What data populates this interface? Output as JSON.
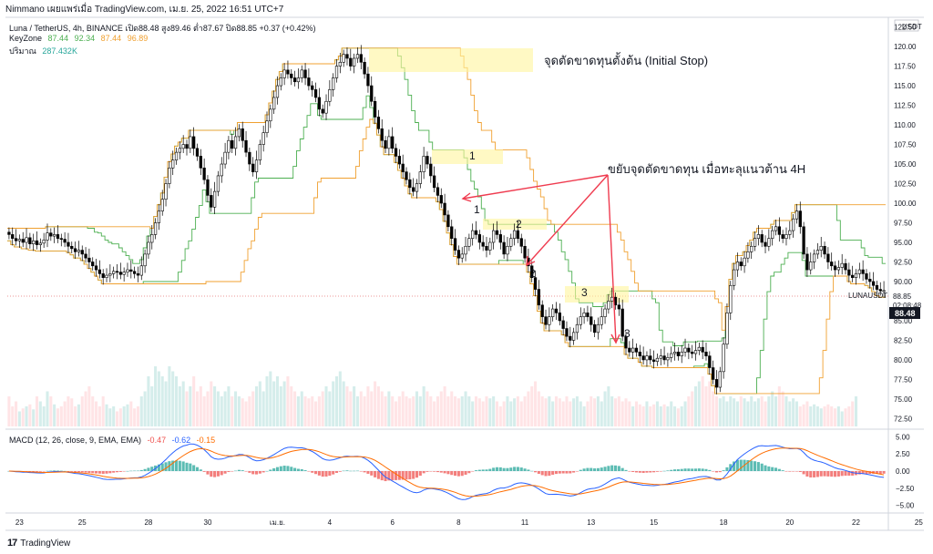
{
  "header": {
    "publisher": "Nimmano เผยแพร่เมื่อ TradingView.com, เม.ย. 25, 2022 16:51 UTC+7"
  },
  "legend": {
    "symbol_line": "Luna / TetherUS, 4h, BINANCE  เปิด88.48  สูง89.46  ต่ำ87.67  ปิด88.85  +0.37 (+0.42%)",
    "keyzone_label": "KeyZone",
    "keyzone_values": [
      "87.44",
      "92.34",
      "87.44",
      "96.89"
    ],
    "volume_label": "ปริมาณ",
    "volume_value": "287.432K",
    "macd_label": "MACD (12, 26, close, 9, EMA, EMA)",
    "macd_values": [
      "-0.47",
      "-0.62",
      "-0.15"
    ]
  },
  "annotations": {
    "initial_stop": "จุดตัดขาดทุนตั้งต้น (Initial Stop)",
    "move_stop": "ขยับจุดตัดขาดทุน เมื่อทะลุแนวต้าน 4H",
    "zone_labels": [
      "1",
      "2",
      "3"
    ],
    "arrow_labels": [
      "1",
      "2",
      "3"
    ]
  },
  "price_axis": {
    "currency": "USDT",
    "symbol_tag": "LUNAUSDT",
    "price_tag": "88.85",
    "countdown": "02:08:48",
    "close_tag": "88.48"
  },
  "footer": {
    "brand": "TradingView",
    "logo": "17"
  },
  "colors": {
    "up": "#ffffff",
    "down": "#000000",
    "green_line": "#4caf50",
    "orange_line": "#f0a030",
    "zone": "#fff59d",
    "arrow": "#ef3b4f",
    "macd": "#2962ff",
    "signal": "#ff6d00",
    "hist_pos": "#26a69a",
    "hist_neg": "#ef5350"
  },
  "chart_data": {
    "type": "candlestick",
    "title": "Luna / TetherUS, 4h, BINANCE",
    "price_ticks": [
      "122.50",
      "120.00",
      "117.50",
      "115.00",
      "112.50",
      "110.00",
      "107.50",
      "105.00",
      "102.50",
      "100.00",
      "97.50",
      "95.00",
      "92.50",
      "90.00",
      "85.00",
      "82.50",
      "80.00",
      "77.50",
      "75.00",
      "72.50"
    ],
    "ylim": [
      71.5,
      123.5
    ],
    "macd_ticks": [
      "5.00",
      "2.50",
      "0.00",
      "-2.50",
      "-5.00"
    ],
    "macd_ylim": [
      -5.7,
      5.7
    ],
    "x_ticks": [
      "23",
      "25",
      "28",
      "30",
      "เม.ย.",
      "4",
      "6",
      "8",
      "11",
      "13",
      "15",
      "18",
      "20",
      "22",
      "25"
    ],
    "x_tick_bars": [
      3,
      21,
      40,
      57,
      77,
      92,
      110,
      129,
      148,
      167,
      185,
      205,
      224,
      243,
      261
    ],
    "closes": [
      96.0,
      95.5,
      95.2,
      95.4,
      95.0,
      95.6,
      94.8,
      95.2,
      94.7,
      94.9,
      95.3,
      96.2,
      95.8,
      96.0,
      95.5,
      95.4,
      95.0,
      94.5,
      94.2,
      93.8,
      94.0,
      93.5,
      93.0,
      92.5,
      92.0,
      91.5,
      91.0,
      90.5,
      90.8,
      91.0,
      91.3,
      91.2,
      90.9,
      91.2,
      91.5,
      91.3,
      91.0,
      90.8,
      92.0,
      93.5,
      95.0,
      96.0,
      97.5,
      99.0,
      100.5,
      102.5,
      104.5,
      105.5,
      106.5,
      107.0,
      107.5,
      107.0,
      108.5,
      107.0,
      106.0,
      104.5,
      103.0,
      101.0,
      99.5,
      101.5,
      103.5,
      105.0,
      106.5,
      108.0,
      107.0,
      108.5,
      109.5,
      108.0,
      106.5,
      105.0,
      104.0,
      105.5,
      107.5,
      109.0,
      110.5,
      112.0,
      113.5,
      115.0,
      116.0,
      117.0,
      116.5,
      116.0,
      115.5,
      116.0,
      117.0,
      116.0,
      115.0,
      114.5,
      113.5,
      112.0,
      111.5,
      113.0,
      114.5,
      116.0,
      117.5,
      118.0,
      119.0,
      118.5,
      117.5,
      118.5,
      119.0,
      118.0,
      116.5,
      115.0,
      113.0,
      111.0,
      109.5,
      108.0,
      107.0,
      108.5,
      107.0,
      106.0,
      105.0,
      104.0,
      103.0,
      102.0,
      101.5,
      102.5,
      104.0,
      106.0,
      105.0,
      103.5,
      102.0,
      101.0,
      100.0,
      98.5,
      97.0,
      95.5,
      94.0,
      93.0,
      93.5,
      94.5,
      95.5,
      96.5,
      96.0,
      95.0,
      94.5,
      94.0,
      95.0,
      96.5,
      96.0,
      95.0,
      93.5,
      94.5,
      95.5,
      96.5,
      95.5,
      94.5,
      93.0,
      92.0,
      90.5,
      89.0,
      87.0,
      85.5,
      84.5,
      85.5,
      86.5,
      86.0,
      85.0,
      84.0,
      83.0,
      82.5,
      83.5,
      84.5,
      85.5,
      86.0,
      85.5,
      84.5,
      83.5,
      84.5,
      85.5,
      86.5,
      87.5,
      88.0,
      87.0,
      86.5,
      83.0,
      81.5,
      81.0,
      81.5,
      81.0,
      80.5,
      80.0,
      80.5,
      80.0,
      79.8,
      80.2,
      80.5,
      80.0,
      80.3,
      80.8,
      81.0,
      80.5,
      81.0,
      81.5,
      81.0,
      80.8,
      81.2,
      81.6,
      81.0,
      80.5,
      79.0,
      77.5,
      76.5,
      78.5,
      82.0,
      86.0,
      89.5,
      91.5,
      92.5,
      92.0,
      93.0,
      93.8,
      94.5,
      95.5,
      96.0,
      95.0,
      94.5,
      95.5,
      96.5,
      97.0,
      96.0,
      95.5,
      96.0,
      96.5,
      98.0,
      99.0,
      97.0,
      93.5,
      91.5,
      92.5,
      93.5,
      94.0,
      94.5,
      93.5,
      92.5,
      92.0,
      91.5,
      91.8,
      92.3,
      91.5,
      90.8,
      90.5,
      91.0,
      91.5,
      91.0,
      90.3,
      90.0,
      89.5,
      89.0,
      88.8,
      88.85
    ],
    "volumes": [
      0.3,
      0.2,
      0.25,
      0.15,
      0.18,
      0.2,
      0.22,
      0.17,
      0.3,
      0.25,
      0.2,
      0.35,
      0.3,
      0.22,
      0.18,
      0.2,
      0.25,
      0.3,
      0.28,
      0.2,
      0.22,
      0.3,
      0.35,
      0.4,
      0.3,
      0.25,
      0.2,
      0.3,
      0.22,
      0.18,
      0.2,
      0.15,
      0.18,
      0.2,
      0.22,
      0.25,
      0.18,
      0.2,
      0.3,
      0.35,
      0.5,
      0.4,
      0.6,
      0.55,
      0.5,
      0.45,
      0.6,
      0.55,
      0.5,
      0.4,
      0.45,
      0.35,
      0.4,
      0.5,
      0.35,
      0.4,
      0.3,
      0.35,
      0.45,
      0.4,
      0.35,
      0.3,
      0.35,
      0.4,
      0.3,
      0.35,
      0.3,
      0.28,
      0.25,
      0.3,
      0.35,
      0.4,
      0.45,
      0.35,
      0.5,
      0.55,
      0.45,
      0.5,
      0.4,
      0.45,
      0.5,
      0.4,
      0.35,
      0.3,
      0.35,
      0.3,
      0.28,
      0.3,
      0.25,
      0.3,
      0.35,
      0.4,
      0.35,
      0.45,
      0.5,
      0.55,
      0.45,
      0.4,
      0.35,
      0.4,
      0.3,
      0.35,
      0.3,
      0.4,
      0.35,
      0.45,
      0.4,
      0.35,
      0.3,
      0.35,
      0.3,
      0.25,
      0.3,
      0.35,
      0.3,
      0.28,
      0.3,
      0.35,
      0.3,
      0.4,
      0.35,
      0.3,
      0.25,
      0.3,
      0.35,
      0.4,
      0.3,
      0.35,
      0.3,
      0.28,
      0.3,
      0.35,
      0.3,
      0.25,
      0.3,
      0.28,
      0.25,
      0.3,
      0.28,
      0.3,
      0.25,
      0.2,
      0.25,
      0.3,
      0.25,
      0.28,
      0.3,
      0.25,
      0.3,
      0.35,
      0.4,
      0.45,
      0.35,
      0.3,
      0.28,
      0.3,
      0.25,
      0.3,
      0.28,
      0.25,
      0.3,
      0.25,
      0.28,
      0.3,
      0.25,
      0.2,
      0.25,
      0.3,
      0.28,
      0.3,
      0.25,
      0.35,
      0.4,
      0.3,
      0.28,
      0.3,
      0.25,
      0.28,
      0.25,
      0.2,
      0.25,
      0.22,
      0.2,
      0.25,
      0.2,
      0.22,
      0.25,
      0.2,
      0.22,
      0.2,
      0.25,
      0.2,
      0.18,
      0.2,
      0.25,
      0.3,
      0.35,
      0.4,
      0.45,
      0.5,
      0.4,
      0.45,
      0.35,
      0.3,
      0.28,
      0.3,
      0.25,
      0.3,
      0.28,
      0.25,
      0.3,
      0.28,
      0.25,
      0.3,
      0.25,
      0.28,
      0.3,
      0.25,
      0.3,
      0.35,
      0.3,
      0.4,
      0.35,
      0.3,
      0.25,
      0.28,
      0.25,
      0.2,
      0.22,
      0.25,
      0.2,
      0.22,
      0.2,
      0.18,
      0.2,
      0.22,
      0.2,
      0.18,
      0.2,
      0.15,
      0.18,
      0.2,
      0.25,
      0.3
    ]
  }
}
